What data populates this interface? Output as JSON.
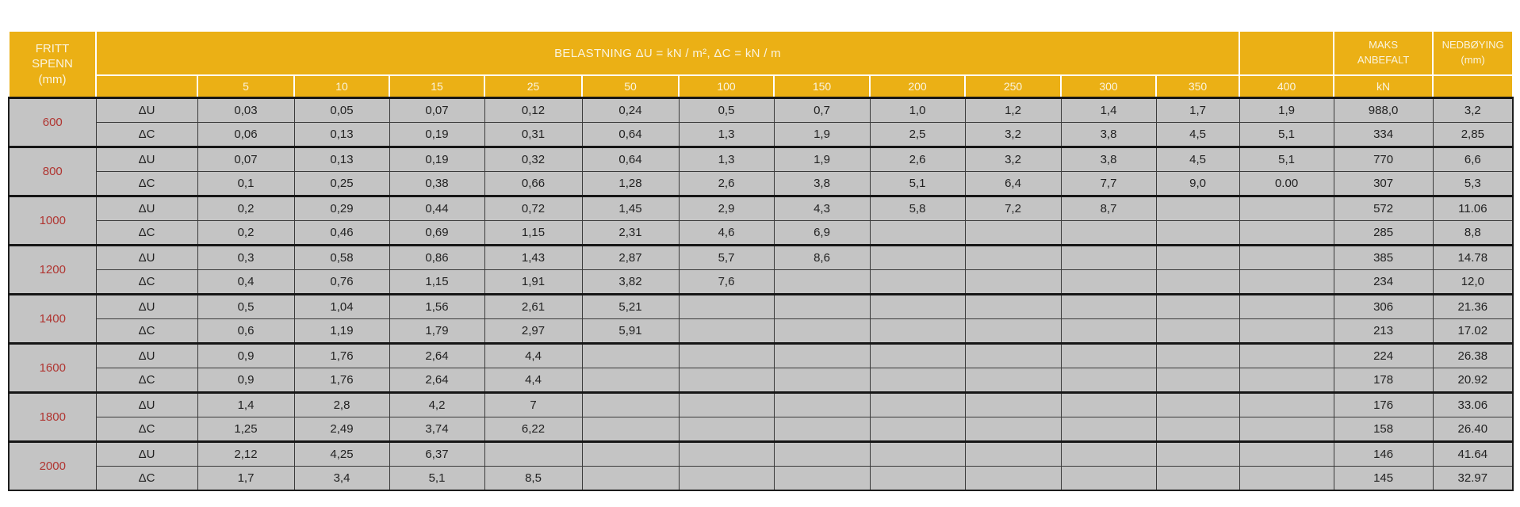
{
  "header": {
    "span_lines": [
      "FRITT",
      "SPENN",
      "(mm)"
    ],
    "load_title": "BELASTNING  ΔU = kN / m², ΔC = kN / m",
    "load_columns": [
      "5",
      "10",
      "15",
      "25",
      "50",
      "100",
      "150",
      "200",
      "250",
      "300",
      "350",
      "400"
    ],
    "maks_lines": [
      "MAKS",
      "ANBEFALT"
    ],
    "maks_unit": "kN",
    "nedboying_lines": [
      "NEDBØYING",
      "(mm)"
    ]
  },
  "body": {
    "groups": [
      {
        "span": "600",
        "rows": [
          {
            "label": "ΔU",
            "values": [
              "0,03",
              "0,05",
              "0,07",
              "0,12",
              "0,24",
              "0,5",
              "0,7",
              "1,0",
              "1,2",
              "1,4",
              "1,7",
              "1,9"
            ],
            "maks_kn": "988,0",
            "nedboying": "3,2"
          },
          {
            "label": "ΔC",
            "values": [
              "0,06",
              "0,13",
              "0,19",
              "0,31",
              "0,64",
              "1,3",
              "1,9",
              "2,5",
              "3,2",
              "3,8",
              "4,5",
              "5,1"
            ],
            "maks_kn": "334",
            "nedboying": "2,85"
          }
        ]
      },
      {
        "span": "800",
        "rows": [
          {
            "label": "ΔU",
            "values": [
              "0,07",
              "0,13",
              "0,19",
              "0,32",
              "0,64",
              "1,3",
              "1,9",
              "2,6",
              "3,2",
              "3,8",
              "4,5",
              "5,1"
            ],
            "maks_kn": "770",
            "nedboying": "6,6"
          },
          {
            "label": "ΔC",
            "values": [
              "0,1",
              "0,25",
              "0,38",
              "0,66",
              "1,28",
              "2,6",
              "3,8",
              "5,1",
              "6,4",
              "7,7",
              "9,0",
              "0.00"
            ],
            "maks_kn": "307",
            "nedboying": "5,3"
          }
        ]
      },
      {
        "span": "1000",
        "rows": [
          {
            "label": "ΔU",
            "values": [
              "0,2",
              "0,29",
              "0,44",
              "0,72",
              "1,45",
              "2,9",
              "4,3",
              "5,8",
              "7,2",
              "8,7",
              "",
              ""
            ],
            "maks_kn": "572",
            "nedboying": "11.06"
          },
          {
            "label": "ΔC",
            "values": [
              "0,2",
              "0,46",
              "0,69",
              "1,15",
              "2,31",
              "4,6",
              "6,9",
              "",
              "",
              "",
              "",
              ""
            ],
            "maks_kn": "285",
            "nedboying": "8,8"
          }
        ]
      },
      {
        "span": "1200",
        "rows": [
          {
            "label": "ΔU",
            "values": [
              "0,3",
              "0,58",
              "0,86",
              "1,43",
              "2,87",
              "5,7",
              "8,6",
              "",
              "",
              "",
              "",
              ""
            ],
            "maks_kn": "385",
            "nedboying": "14.78"
          },
          {
            "label": "ΔC",
            "values": [
              "0,4",
              "0,76",
              "1,15",
              "1,91",
              "3,82",
              "7,6",
              "",
              "",
              "",
              "",
              "",
              ""
            ],
            "maks_kn": "234",
            "nedboying": "12,0"
          }
        ]
      },
      {
        "span": "1400",
        "rows": [
          {
            "label": "ΔU",
            "values": [
              "0,5",
              "1,04",
              "1,56",
              "2,61",
              "5,21",
              "",
              "",
              "",
              "",
              "",
              "",
              ""
            ],
            "maks_kn": "306",
            "nedboying": "21.36"
          },
          {
            "label": "ΔC",
            "values": [
              "0,6",
              "1,19",
              "1,79",
              "2,97",
              "5,91",
              "",
              "",
              "",
              "",
              "",
              "",
              ""
            ],
            "maks_kn": "213",
            "nedboying": "17.02"
          }
        ]
      },
      {
        "span": "1600",
        "rows": [
          {
            "label": "ΔU",
            "values": [
              "0,9",
              "1,76",
              "2,64",
              "4,4",
              "",
              "",
              "",
              "",
              "",
              "",
              "",
              ""
            ],
            "maks_kn": "224",
            "nedboying": "26.38"
          },
          {
            "label": "ΔC",
            "values": [
              "0,9",
              "1,76",
              "2,64",
              "4,4",
              "",
              "",
              "",
              "",
              "",
              "",
              "",
              ""
            ],
            "maks_kn": "178",
            "nedboying": "20.92"
          }
        ]
      },
      {
        "span": "1800",
        "rows": [
          {
            "label": "ΔU",
            "values": [
              "1,4",
              "2,8",
              "4,2",
              "7",
              "",
              "",
              "",
              "",
              "",
              "",
              "",
              ""
            ],
            "maks_kn": "176",
            "nedboying": "33.06"
          },
          {
            "label": "ΔC",
            "values": [
              "1,25",
              "2,49",
              "3,74",
              "6,22",
              "",
              "",
              "",
              "",
              "",
              "",
              "",
              ""
            ],
            "maks_kn": "158",
            "nedboying": "26.40"
          }
        ]
      },
      {
        "span": "2000",
        "rows": [
          {
            "label": "ΔU",
            "values": [
              "2,12",
              "4,25",
              "6,37",
              "",
              "",
              "",
              "",
              "",
              "",
              "",
              "",
              ""
            ],
            "maks_kn": "146",
            "nedboying": "41.64"
          },
          {
            "label": "ΔC",
            "values": [
              "1,7",
              "3,4",
              "5,1",
              "8,5",
              "",
              "",
              "",
              "",
              "",
              "",
              "",
              ""
            ],
            "maks_kn": "145",
            "nedboying": "32.97"
          }
        ]
      }
    ]
  },
  "colors": {
    "header_bg": "#EBB015",
    "header_text": "#FAF4E0",
    "cell_bg": "#C4C4C4",
    "span_text": "#B03531",
    "grid_line": "#3a3a3a",
    "group_line": "#161616"
  }
}
